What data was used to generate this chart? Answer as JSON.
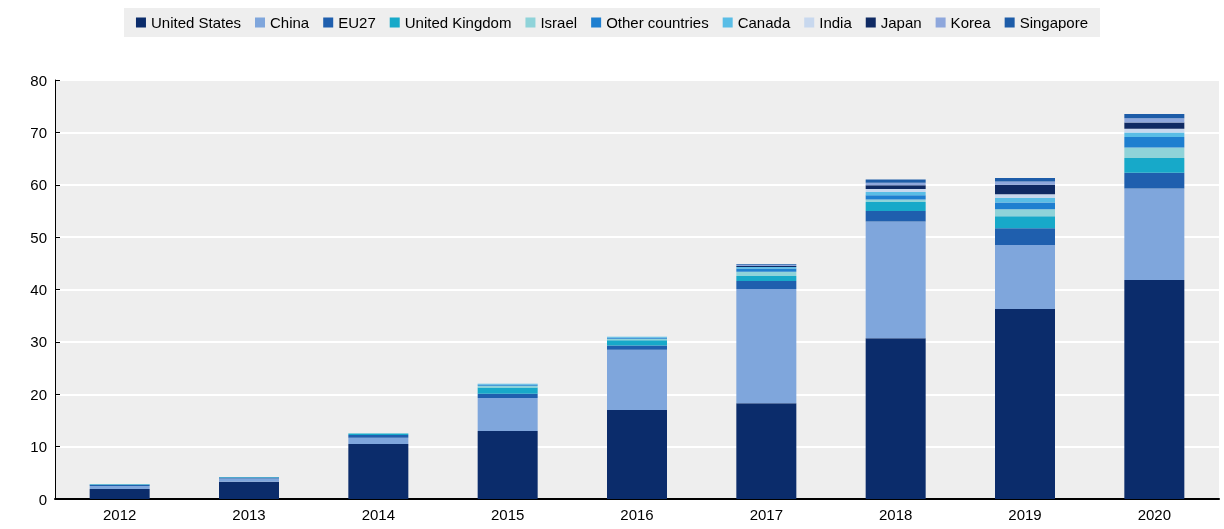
{
  "chart_data": {
    "type": "bar",
    "stacked": true,
    "categories": [
      "2012",
      "2013",
      "2014",
      "2015",
      "2016",
      "2017",
      "2018",
      "2019",
      "2020"
    ],
    "series": [
      {
        "name": "United States",
        "color": "#0b2c6b",
        "values": [
          1.9,
          3.3,
          10.5,
          13,
          17,
          18.3,
          30.7,
          36.3,
          41.8
        ]
      },
      {
        "name": "China",
        "color": "#7fa6dc",
        "values": [
          0.6,
          0.6,
          1.2,
          6.3,
          11.5,
          21.8,
          22.3,
          12.2,
          17.5
        ]
      },
      {
        "name": "EU27",
        "color": "#1f5fae",
        "values": [
          0.2,
          0.2,
          0.5,
          0.8,
          0.8,
          1.5,
          2,
          3.2,
          3
        ]
      },
      {
        "name": "United Kingdom",
        "color": "#17a9c9",
        "values": [
          0.1,
          0.1,
          0.3,
          1.2,
          1,
          1,
          1.7,
          2.3,
          2.8
        ]
      },
      {
        "name": "Israel",
        "color": "#8fd3d9",
        "values": [
          null,
          null,
          null,
          0.3,
          0.3,
          0.8,
          0.5,
          1.3,
          2
        ]
      },
      {
        "name": "Other countries",
        "color": "#1e7fd0",
        "values": [
          null,
          null,
          null,
          0.2,
          0.2,
          0.6,
          0.8,
          1.3,
          2
        ]
      },
      {
        "name": "Canada",
        "color": "#59bde6",
        "values": [
          null,
          null,
          null,
          0.2,
          0.2,
          0.3,
          0.6,
          0.9,
          0.9
        ]
      },
      {
        "name": "India",
        "color": "#c8d8ee",
        "values": [
          null,
          null,
          null,
          null,
          null,
          null,
          0.6,
          0.7,
          0.7
        ]
      },
      {
        "name": "Japan",
        "color": "#0f2a63",
        "values": [
          null,
          null,
          null,
          null,
          null,
          0.2,
          0.7,
          1.8,
          1.2
        ]
      },
      {
        "name": "Korea",
        "color": "#8ea7dc",
        "values": [
          null,
          null,
          null,
          null,
          null,
          0.2,
          0.5,
          0.6,
          0.8
        ]
      },
      {
        "name": "Singapore",
        "color": "#1d5ca8",
        "values": [
          null,
          null,
          null,
          null,
          null,
          0.1,
          0.6,
          0.7,
          0.8
        ]
      }
    ],
    "ylim": [
      0,
      80
    ],
    "yticks": [
      0,
      10,
      20,
      30,
      40,
      50,
      60,
      70,
      80
    ],
    "grid": "y",
    "legend": "top"
  }
}
